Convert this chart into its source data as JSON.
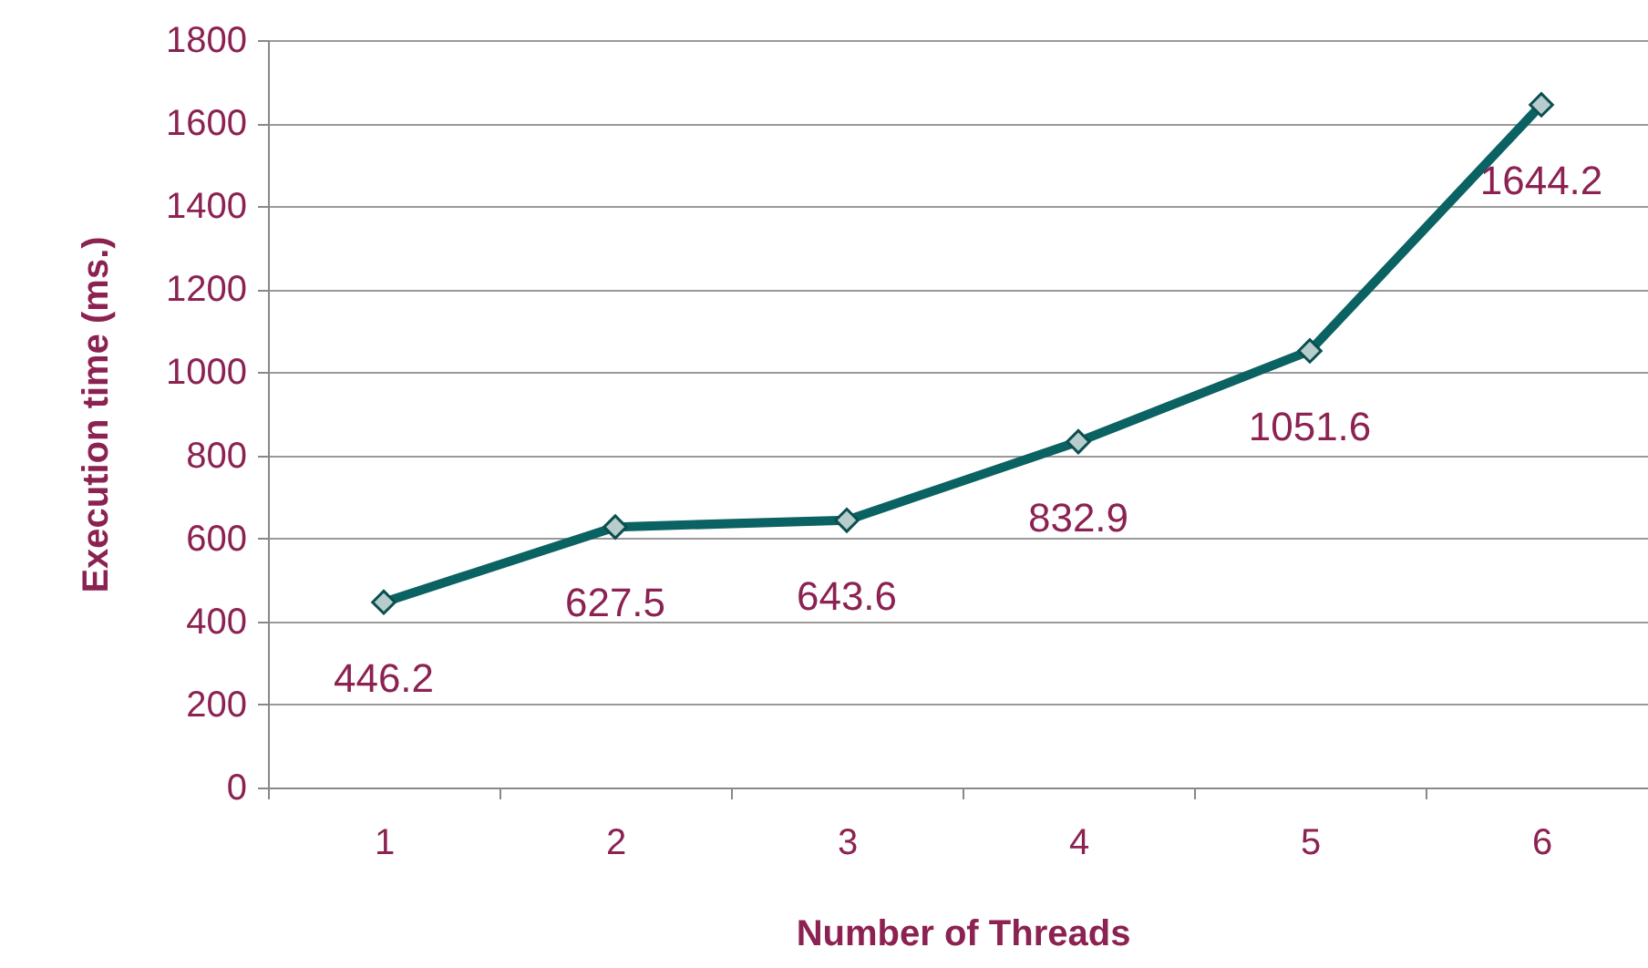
{
  "chart_data": {
    "type": "line",
    "xlabel": "Number of Threads",
    "ylabel": "Execution time (ms.)",
    "categories": [
      "1",
      "2",
      "3",
      "4",
      "5",
      "6"
    ],
    "series": [
      {
        "color": "#0b6262",
        "values": [
          446.2,
          627.5,
          643.6,
          832.9,
          1051.6,
          1644.2
        ]
      }
    ],
    "ylim": [
      0,
      1800
    ],
    "yticks": [
      0,
      200,
      400,
      600,
      800,
      1000,
      1200,
      1400,
      1600,
      1800
    ],
    "grid": "y",
    "marker": "diamond",
    "line_style": "solid",
    "data_labels": true,
    "legend": false
  }
}
